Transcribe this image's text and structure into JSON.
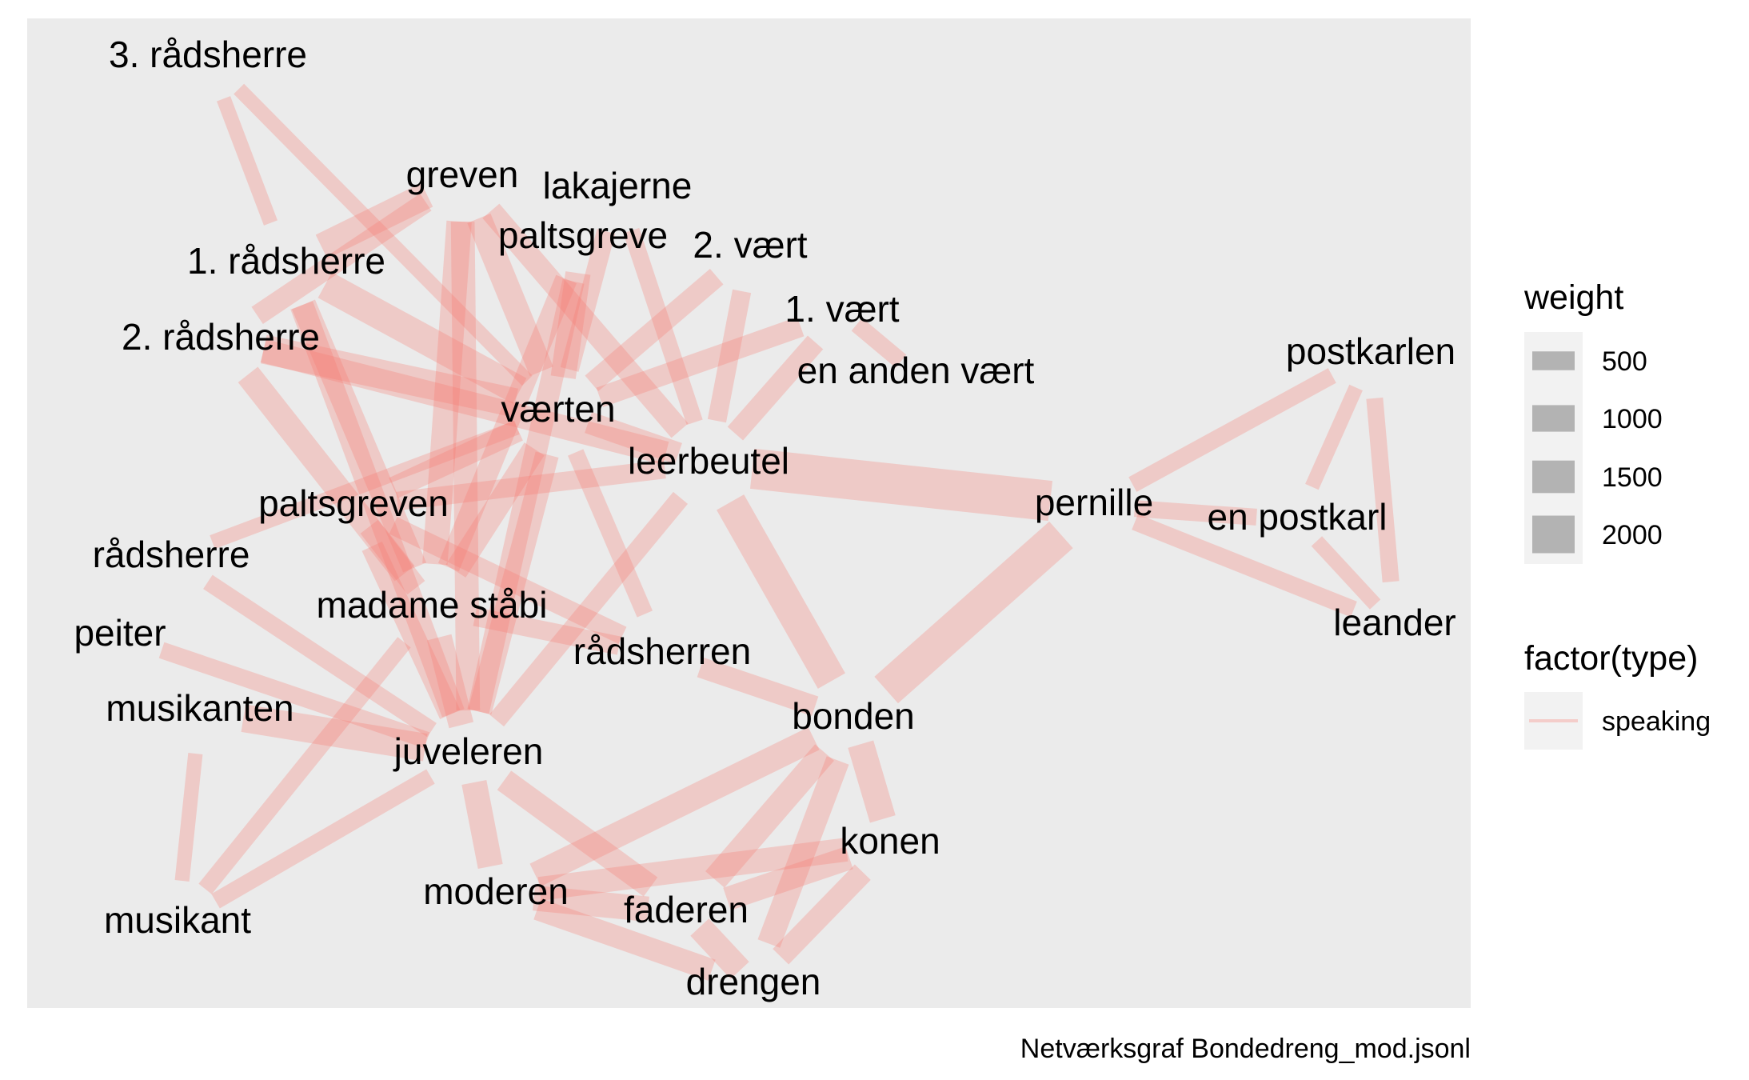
{
  "chart_data": {
    "type": "network",
    "edge_color": "#F8766D",
    "panel_background": "#EBEBEB",
    "nodes": [
      {
        "id": "3. rådsherre"
      },
      {
        "id": "greven"
      },
      {
        "id": "lakajerne"
      },
      {
        "id": "paltsgreve"
      },
      {
        "id": "2. vært"
      },
      {
        "id": "1. rådsherre"
      },
      {
        "id": "1. vært"
      },
      {
        "id": "2. rådsherre"
      },
      {
        "id": "en anden vært"
      },
      {
        "id": "værten"
      },
      {
        "id": "leerbeutel"
      },
      {
        "id": "postkarlen"
      },
      {
        "id": "paltsgreven"
      },
      {
        "id": "pernille"
      },
      {
        "id": "en postkarl"
      },
      {
        "id": "rådsherre"
      },
      {
        "id": "madame ståbi"
      },
      {
        "id": "peiter"
      },
      {
        "id": "leander"
      },
      {
        "id": "rådsherren"
      },
      {
        "id": "musikanten"
      },
      {
        "id": "bonden"
      },
      {
        "id": "juveleren"
      },
      {
        "id": "konen"
      },
      {
        "id": "moderen"
      },
      {
        "id": "faderen"
      },
      {
        "id": "musikant"
      },
      {
        "id": "drengen"
      }
    ],
    "edges": [
      {
        "source": "3. rådsherre",
        "target": "1. rådsherre",
        "weight": 300
      },
      {
        "source": "3. rådsherre",
        "target": "værten",
        "weight": 300
      },
      {
        "source": "1. rådsherre",
        "target": "værten",
        "weight": 1200
      },
      {
        "source": "1. rådsherre",
        "target": "greven",
        "weight": 1000
      },
      {
        "source": "1. rådsherre",
        "target": "madame ståbi",
        "weight": 900
      },
      {
        "source": "1. rådsherre",
        "target": "juveleren",
        "weight": 800
      },
      {
        "source": "2. rådsherre",
        "target": "værten",
        "weight": 1200
      },
      {
        "source": "2. rådsherre",
        "target": "madame ståbi",
        "weight": 900
      },
      {
        "source": "2. rådsherre",
        "target": "leerbeutel",
        "weight": 800
      },
      {
        "source": "2. rådsherre",
        "target": "greven",
        "weight": 600
      },
      {
        "source": "greven",
        "target": "værten",
        "weight": 900
      },
      {
        "source": "greven",
        "target": "madame ståbi",
        "weight": 900
      },
      {
        "source": "greven",
        "target": "juveleren",
        "weight": 800
      },
      {
        "source": "greven",
        "target": "leerbeutel",
        "weight": 700
      },
      {
        "source": "paltsgreve",
        "target": "værten",
        "weight": 900
      },
      {
        "source": "paltsgreve",
        "target": "juveleren",
        "weight": 700
      },
      {
        "source": "paltsgreve",
        "target": "madame ståbi",
        "weight": 700
      },
      {
        "source": "lakajerne",
        "target": "værten",
        "weight": 500
      },
      {
        "source": "lakajerne",
        "target": "leerbeutel",
        "weight": 400
      },
      {
        "source": "2. vært",
        "target": "værten",
        "weight": 600
      },
      {
        "source": "2. vært",
        "target": "leerbeutel",
        "weight": 500
      },
      {
        "source": "1. vært",
        "target": "værten",
        "weight": 600
      },
      {
        "source": "1. vært",
        "target": "leerbeutel",
        "weight": 600
      },
      {
        "source": "1. vært",
        "target": "en anden vært",
        "weight": 400
      },
      {
        "source": "værten",
        "target": "leerbeutel",
        "weight": 700
      },
      {
        "source": "værten",
        "target": "paltsgreven",
        "weight": 700
      },
      {
        "source": "værten",
        "target": "madame ståbi",
        "weight": 800
      },
      {
        "source": "værten",
        "target": "juveleren",
        "weight": 800
      },
      {
        "source": "værten",
        "target": "rådsherren",
        "weight": 400
      },
      {
        "source": "værten",
        "target": "rådsherre",
        "weight": 300
      },
      {
        "source": "leerbeutel",
        "target": "pernille",
        "weight": 2300
      },
      {
        "source": "leerbeutel",
        "target": "bonden",
        "weight": 1400
      },
      {
        "source": "leerbeutel",
        "target": "paltsgreven",
        "weight": 500
      },
      {
        "source": "leerbeutel",
        "target": "juveleren",
        "weight": 500
      },
      {
        "source": "pernille",
        "target": "bonden",
        "weight": 1800
      },
      {
        "source": "pernille",
        "target": "postkarlen",
        "weight": 400
      },
      {
        "source": "pernille",
        "target": "en postkarl",
        "weight": 400
      },
      {
        "source": "pernille",
        "target": "leander",
        "weight": 400
      },
      {
        "source": "postkarlen",
        "target": "leander",
        "weight": 400
      },
      {
        "source": "postkarlen",
        "target": "en postkarl",
        "weight": 300
      },
      {
        "source": "en postkarl",
        "target": "leander",
        "weight": 300
      },
      {
        "source": "paltsgreven",
        "target": "madame ståbi",
        "weight": 700
      },
      {
        "source": "paltsgreven",
        "target": "juveleren",
        "weight": 700
      },
      {
        "source": "paltsgreven",
        "target": "rådsherren",
        "weight": 500
      },
      {
        "source": "madame ståbi",
        "target": "juveleren",
        "weight": 900
      },
      {
        "source": "madame ståbi",
        "target": "rådsherren",
        "weight": 500
      },
      {
        "source": "rådsherre",
        "target": "juveleren",
        "weight": 400
      },
      {
        "source": "peiter",
        "target": "juveleren",
        "weight": 400
      },
      {
        "source": "musikanten",
        "target": "musikant",
        "weight": 300
      },
      {
        "source": "juveleren",
        "target": "musikant",
        "weight": 400
      },
      {
        "source": "juveleren",
        "target": "musikanten",
        "weight": 1100
      },
      {
        "source": "musikant",
        "target": "madame ståbi",
        "weight": 400
      },
      {
        "source": "rådsherren",
        "target": "bonden",
        "weight": 600
      },
      {
        "source": "bonden",
        "target": "konen",
        "weight": 1000
      },
      {
        "source": "bonden",
        "target": "moderen",
        "weight": 900
      },
      {
        "source": "bonden",
        "target": "faderen",
        "weight": 900
      },
      {
        "source": "bonden",
        "target": "drengen",
        "weight": 800
      },
      {
        "source": "juveleren",
        "target": "faderen",
        "weight": 800
      },
      {
        "source": "juveleren",
        "target": "moderen",
        "weight": 900
      },
      {
        "source": "konen",
        "target": "moderen",
        "weight": 800
      },
      {
        "source": "konen",
        "target": "faderen",
        "weight": 800
      },
      {
        "source": "moderen",
        "target": "faderen",
        "weight": 900
      },
      {
        "source": "faderen",
        "target": "drengen",
        "weight": 900
      },
      {
        "source": "drengen",
        "target": "konen",
        "weight": 700
      },
      {
        "source": "moderen",
        "target": "drengen",
        "weight": 700
      }
    ],
    "legend": {
      "weight_title": "weight",
      "weight_values": [
        500,
        1000,
        1500,
        2000
      ],
      "weight_labels": [
        "500",
        "1000",
        "1500",
        "2000"
      ],
      "type_title": "factor(type)",
      "type_labels": [
        "speaking"
      ]
    },
    "caption": "Netværksgraf Bondedreng_mod.jsonl"
  }
}
